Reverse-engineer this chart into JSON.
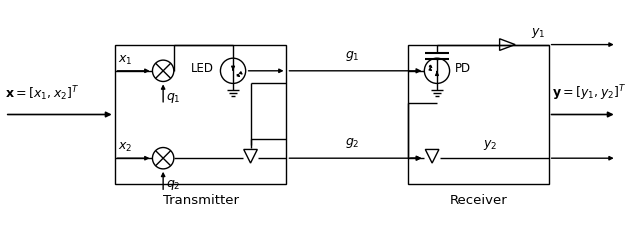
{
  "fig_width": 6.4,
  "fig_height": 2.29,
  "dpi": 100,
  "bg_color": "#ffffff",
  "x_input_label": "$\\mathbf{x}=[x_1,x_2]^T$",
  "y_output_label": "$\\mathbf{y}=[y_1,y_2]^T$",
  "transmitter_label": "Transmitter",
  "receiver_label": "Receiver",
  "x1_label": "$x_1$",
  "x2_label": "$x_2$",
  "y1_label": "$y_1$",
  "y2_label": "$y_2$",
  "q1_label": "$q_1$",
  "q2_label": "$q_2$",
  "g1_label": "$g_1$",
  "g2_label": "$g_2$",
  "led_label": "LED",
  "pd_label": "PD"
}
